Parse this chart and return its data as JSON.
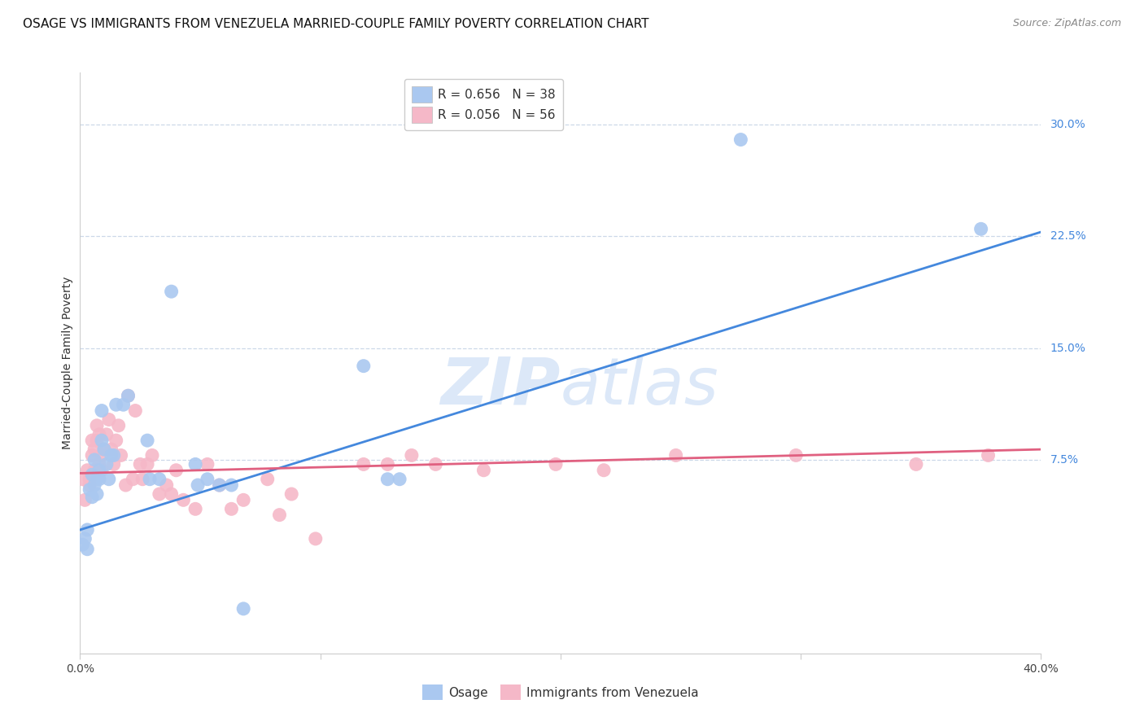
{
  "title": "OSAGE VS IMMIGRANTS FROM VENEZUELA MARRIED-COUPLE FAMILY POVERTY CORRELATION CHART",
  "source": "Source: ZipAtlas.com",
  "ylabel": "Married-Couple Family Poverty",
  "x_min": 0.0,
  "x_max": 0.4,
  "y_min": -0.055,
  "y_max": 0.335,
  "x_ticks": [
    0.0,
    0.1,
    0.2,
    0.3,
    0.4
  ],
  "x_tick_labels": [
    "0.0%",
    "",
    "",
    "",
    "40.0%"
  ],
  "y_ticks": [
    0.075,
    0.15,
    0.225,
    0.3
  ],
  "y_tick_labels": [
    "7.5%",
    "15.0%",
    "22.5%",
    "30.0%"
  ],
  "osage_color": "#aac8f0",
  "venezuela_color": "#f5b8c8",
  "osage_line_color": "#4488dd",
  "venezuela_line_color": "#e06080",
  "watermark_color": "#dce8f8",
  "legend_R_osage": "0.656",
  "legend_N_osage": "38",
  "legend_R_venezuela": "0.056",
  "legend_N_venezuela": "56",
  "osage_scatter": [
    [
      0.001,
      0.018
    ],
    [
      0.002,
      0.022
    ],
    [
      0.003,
      0.028
    ],
    [
      0.003,
      0.015
    ],
    [
      0.004,
      0.055
    ],
    [
      0.005,
      0.065
    ],
    [
      0.005,
      0.05
    ],
    [
      0.006,
      0.058
    ],
    [
      0.006,
      0.075
    ],
    [
      0.007,
      0.062
    ],
    [
      0.007,
      0.052
    ],
    [
      0.008,
      0.068
    ],
    [
      0.008,
      0.062
    ],
    [
      0.009,
      0.088
    ],
    [
      0.009,
      0.108
    ],
    [
      0.01,
      0.082
    ],
    [
      0.011,
      0.072
    ],
    [
      0.012,
      0.062
    ],
    [
      0.013,
      0.078
    ],
    [
      0.014,
      0.078
    ],
    [
      0.015,
      0.112
    ],
    [
      0.018,
      0.112
    ],
    [
      0.02,
      0.118
    ],
    [
      0.028,
      0.088
    ],
    [
      0.029,
      0.062
    ],
    [
      0.033,
      0.062
    ],
    [
      0.038,
      0.188
    ],
    [
      0.048,
      0.072
    ],
    [
      0.049,
      0.058
    ],
    [
      0.053,
      0.062
    ],
    [
      0.058,
      0.058
    ],
    [
      0.063,
      0.058
    ],
    [
      0.068,
      -0.025
    ],
    [
      0.118,
      0.138
    ],
    [
      0.128,
      0.062
    ],
    [
      0.133,
      0.062
    ],
    [
      0.275,
      0.29
    ],
    [
      0.375,
      0.23
    ]
  ],
  "venezuela_scatter": [
    [
      0.001,
      0.062
    ],
    [
      0.002,
      0.048
    ],
    [
      0.003,
      0.068
    ],
    [
      0.004,
      0.062
    ],
    [
      0.004,
      0.058
    ],
    [
      0.005,
      0.078
    ],
    [
      0.005,
      0.088
    ],
    [
      0.006,
      0.068
    ],
    [
      0.006,
      0.082
    ],
    [
      0.007,
      0.098
    ],
    [
      0.007,
      0.088
    ],
    [
      0.008,
      0.072
    ],
    [
      0.008,
      0.092
    ],
    [
      0.009,
      0.078
    ],
    [
      0.009,
      0.068
    ],
    [
      0.01,
      0.082
    ],
    [
      0.011,
      0.092
    ],
    [
      0.012,
      0.102
    ],
    [
      0.013,
      0.082
    ],
    [
      0.014,
      0.072
    ],
    [
      0.015,
      0.088
    ],
    [
      0.016,
      0.098
    ],
    [
      0.017,
      0.078
    ],
    [
      0.019,
      0.058
    ],
    [
      0.02,
      0.118
    ],
    [
      0.022,
      0.062
    ],
    [
      0.023,
      0.108
    ],
    [
      0.025,
      0.072
    ],
    [
      0.026,
      0.062
    ],
    [
      0.028,
      0.072
    ],
    [
      0.03,
      0.078
    ],
    [
      0.033,
      0.052
    ],
    [
      0.036,
      0.058
    ],
    [
      0.038,
      0.052
    ],
    [
      0.04,
      0.068
    ],
    [
      0.043,
      0.048
    ],
    [
      0.048,
      0.042
    ],
    [
      0.053,
      0.072
    ],
    [
      0.058,
      0.058
    ],
    [
      0.063,
      0.042
    ],
    [
      0.068,
      0.048
    ],
    [
      0.078,
      0.062
    ],
    [
      0.083,
      0.038
    ],
    [
      0.088,
      0.052
    ],
    [
      0.098,
      0.022
    ],
    [
      0.118,
      0.072
    ],
    [
      0.128,
      0.072
    ],
    [
      0.138,
      0.078
    ],
    [
      0.148,
      0.072
    ],
    [
      0.168,
      0.068
    ],
    [
      0.198,
      0.072
    ],
    [
      0.218,
      0.068
    ],
    [
      0.248,
      0.078
    ],
    [
      0.298,
      0.078
    ],
    [
      0.348,
      0.072
    ],
    [
      0.378,
      0.078
    ]
  ],
  "osage_line_x": [
    0.0,
    0.4
  ],
  "osage_line_y": [
    0.028,
    0.228
  ],
  "venezuela_line_x": [
    0.0,
    0.4
  ],
  "venezuela_line_y": [
    0.066,
    0.082
  ],
  "background_color": "#ffffff",
  "grid_color": "#ccd8e8",
  "title_fontsize": 11,
  "source_fontsize": 9
}
